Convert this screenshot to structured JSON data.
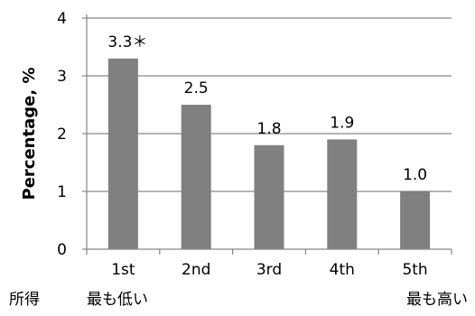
{
  "chart_data": {
    "type": "bar",
    "categories": [
      "1st",
      "2nd",
      "3rd",
      "4th",
      "5th"
    ],
    "values": [
      3.3,
      2.5,
      1.8,
      1.9,
      1.0
    ],
    "data_labels": [
      "3.3＊",
      "2.5",
      "1.8",
      "1.9",
      "1.0"
    ],
    "title": "",
    "xlabel": "",
    "ylabel": "Percentage, %",
    "ylim": [
      0,
      4
    ],
    "yticks": [
      "0",
      "1",
      "2",
      "3",
      "4"
    ],
    "grid": true,
    "bar_color": "#808080",
    "gridline_color": "#868686"
  },
  "footer": {
    "income_label": "所得",
    "lowest_label": "最も低い",
    "highest_label": "最も高い"
  }
}
